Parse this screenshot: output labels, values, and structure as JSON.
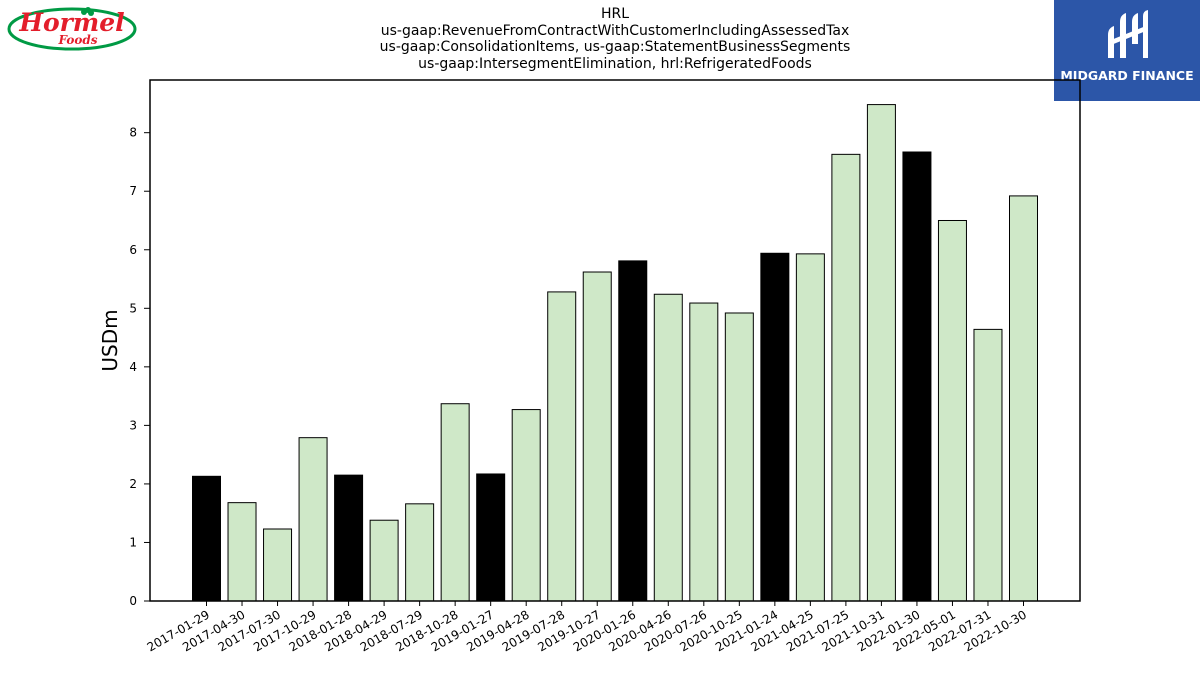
{
  "branding": {
    "left_logo_text_1": "Hormel",
    "left_logo_text_2": "Foods",
    "right_logo_text": "MIDGARD FINANCE",
    "left_logo_colors": {
      "red": "#e31e2b",
      "green": "#009a44"
    },
    "right_logo_color": "#2c56a8"
  },
  "chart_data": {
    "type": "bar",
    "title_lines": [
      "HRL",
      "us-gaap:RevenueFromContractWithCustomerIncludingAssessedTax",
      "us-gaap:ConsolidationItems, us-gaap:StatementBusinessSegments",
      "us-gaap:IntersegmentElimination, hrl:RefrigeratedFoods"
    ],
    "xlabel": "",
    "ylabel": "USDm",
    "ylim": [
      0,
      8.9
    ],
    "yticks": [
      0,
      1,
      2,
      3,
      4,
      5,
      6,
      7,
      8
    ],
    "grid": false,
    "colors": {
      "highlight": "#000000",
      "normal": "#cfe8c8",
      "edge": "#000000"
    },
    "categories": [
      "2017-01-29",
      "2017-04-30",
      "2017-07-30",
      "2017-10-29",
      "2018-01-28",
      "2018-04-29",
      "2018-07-29",
      "2018-10-28",
      "2019-01-27",
      "2019-04-28",
      "2019-07-28",
      "2019-10-27",
      "2020-01-26",
      "2020-04-26",
      "2020-07-26",
      "2020-10-25",
      "2021-01-24",
      "2021-04-25",
      "2021-07-25",
      "2021-10-31",
      "2022-01-30",
      "2022-05-01",
      "2022-07-31",
      "2022-10-30"
    ],
    "values": [
      2.13,
      1.68,
      1.23,
      2.79,
      2.15,
      1.38,
      1.66,
      3.37,
      2.17,
      3.27,
      5.28,
      5.62,
      5.81,
      5.24,
      5.09,
      4.92,
      5.94,
      5.93,
      7.63,
      8.48,
      7.67,
      6.5,
      4.64,
      6.92
    ],
    "highlighted": [
      true,
      false,
      false,
      false,
      true,
      false,
      false,
      false,
      true,
      false,
      false,
      false,
      true,
      false,
      false,
      false,
      true,
      false,
      false,
      false,
      true,
      false,
      false,
      false
    ]
  }
}
